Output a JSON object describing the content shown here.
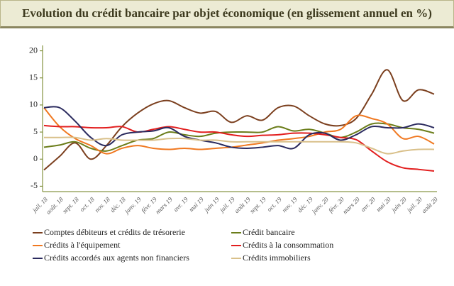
{
  "chart_data": {
    "type": "line",
    "title": "Evolution du crédit bancaire par objet économique (en glissement annuel en %)",
    "categories": [
      "juil. 18",
      "août. 18",
      "sept. 18",
      "oct. 18",
      "nov. 18",
      "déc. 18",
      "janv. 19",
      "févr. 19",
      "mars 19",
      "avr. 19",
      "mai 19",
      "juin 19",
      "juil. 19",
      "août 19",
      "sept. 19",
      "oct. 19",
      "nov. 19",
      "déc. 19",
      "janv. 20",
      "févr. 20",
      "mars 20",
      "avr. 20",
      "mai 20",
      "juin 20",
      "juil. 20",
      "août 20"
    ],
    "series": [
      {
        "name": "Comptes débiteurs et crédits de trésorerie",
        "color": "#7b3f1e",
        "values": [
          -2,
          0.5,
          3,
          0,
          2.5,
          6,
          8.5,
          10.2,
          10.8,
          9.5,
          8.5,
          8.8,
          6.8,
          8,
          7.2,
          9.5,
          9.8,
          8,
          6.5,
          6.2,
          7.5,
          12,
          16.5,
          10.8,
          12.8,
          12
        ]
      },
      {
        "name": "Crédit bancaire",
        "color": "#6b7d1a",
        "values": [
          2.2,
          2.6,
          3.2,
          2,
          1.5,
          2.5,
          3.5,
          3.8,
          5,
          4.5,
          4.2,
          4.8,
          5,
          5,
          5,
          6,
          5.2,
          5.5,
          4.8,
          4,
          5,
          6.5,
          6.5,
          5.8,
          5.5,
          4.8
        ]
      },
      {
        "name": "Crédits à l'équipement",
        "color": "#f07820",
        "values": [
          9.5,
          6,
          3.8,
          2.5,
          1,
          2,
          2.5,
          2,
          1.8,
          2,
          1.8,
          2,
          2.2,
          2.6,
          3,
          3.5,
          3.8,
          4.2,
          5,
          5.5,
          8,
          7.5,
          6.5,
          3.8,
          4.2,
          2.8
        ]
      },
      {
        "name": "Crédits à la consommation",
        "color": "#e21e1e",
        "values": [
          6.2,
          6,
          6,
          5.8,
          5.8,
          6,
          5,
          5.5,
          6,
          5.5,
          5,
          5,
          4.5,
          4.2,
          4.4,
          4.5,
          4.8,
          4.8,
          4.5,
          4,
          3.6,
          1.5,
          -0.5,
          -1.6,
          -1.9,
          -2.2
        ]
      },
      {
        "name": "Crédits accordés aux agents non financiers",
        "color": "#2a2a5e",
        "values": [
          9.5,
          9.5,
          7,
          4,
          2.5,
          4.5,
          5,
          5.2,
          5.8,
          4.2,
          3.5,
          3,
          2.2,
          2,
          2.2,
          2.5,
          2,
          4.5,
          4.8,
          3.5,
          4.5,
          6,
          5.8,
          5.8,
          6.5,
          5.8
        ]
      },
      {
        "name": "Crédits immobiliers",
        "color": "#d9c08a",
        "values": [
          4,
          4,
          4,
          3.5,
          3.8,
          3.5,
          3.5,
          3.5,
          3.8,
          3.8,
          3.5,
          3.5,
          3.2,
          3.2,
          3.2,
          3.2,
          3.2,
          3.2,
          3.2,
          3.2,
          3,
          2,
          1,
          1.5,
          1.8,
          1.8
        ]
      }
    ],
    "ylim": [
      -6,
      21
    ],
    "yticks": [
      -5,
      0,
      5,
      10,
      15,
      20
    ]
  }
}
